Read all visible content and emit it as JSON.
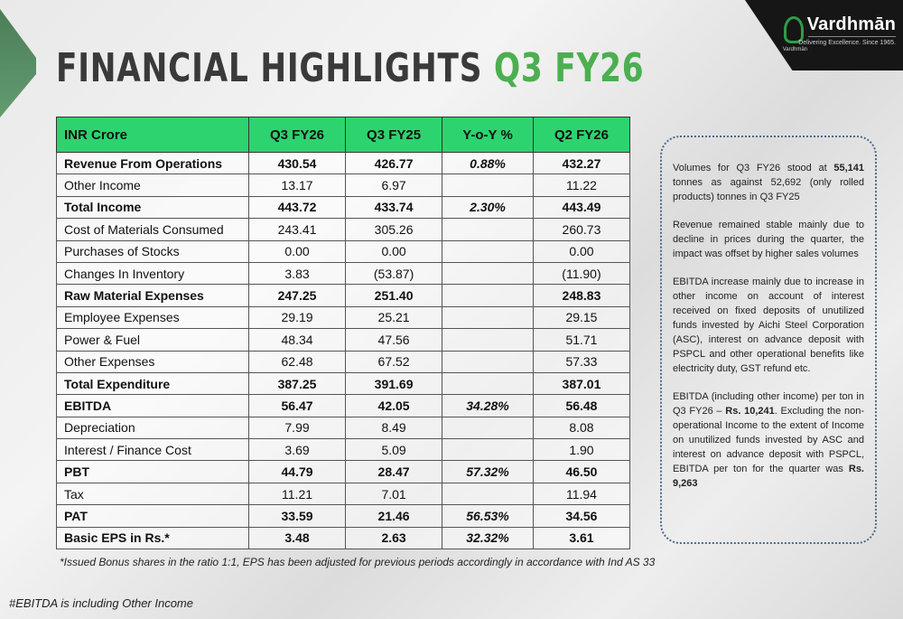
{
  "logo": {
    "name": "Vardhmān",
    "emblem_text": "Vardhmān",
    "tagline": "Delivering Excellence. Since 1965."
  },
  "title": {
    "part1": "FINANCIAL HIGHLIGHTS",
    "part2": "Q3 FY26"
  },
  "table": {
    "headers": [
      "INR Crore",
      "Q3 FY26",
      "Q3 FY25",
      "Y-o-Y %",
      "Q2 FY26"
    ],
    "rows": [
      {
        "label": "Revenue From Operations",
        "q3fy26": "430.54",
        "q3fy25": "426.77",
        "yoy": "0.88%",
        "q2fy26": "432.27",
        "bold": true
      },
      {
        "label": "Other Income",
        "q3fy26": "13.17",
        "q3fy25": "6.97",
        "yoy": "",
        "q2fy26": "11.22",
        "bold": false
      },
      {
        "label": "Total Income",
        "q3fy26": "443.72",
        "q3fy25": "433.74",
        "yoy": "2.30%",
        "q2fy26": "443.49",
        "bold": true
      },
      {
        "label": "Cost of Materials Consumed",
        "q3fy26": "243.41",
        "q3fy25": "305.26",
        "yoy": "",
        "q2fy26": "260.73",
        "bold": false
      },
      {
        "label": "Purchases of Stocks",
        "q3fy26": "0.00",
        "q3fy25": "0.00",
        "yoy": "",
        "q2fy26": "0.00",
        "bold": false
      },
      {
        "label": "Changes In Inventory",
        "q3fy26": "3.83",
        "q3fy25": "(53.87)",
        "yoy": "",
        "q2fy26": "(11.90)",
        "bold": false
      },
      {
        "label": "Raw Material Expenses",
        "q3fy26": "247.25",
        "q3fy25": "251.40",
        "yoy": "",
        "q2fy26": "248.83",
        "bold": true
      },
      {
        "label": "Employee Expenses",
        "q3fy26": "29.19",
        "q3fy25": "25.21",
        "yoy": "",
        "q2fy26": "29.15",
        "bold": false
      },
      {
        "label": "Power & Fuel",
        "q3fy26": "48.34",
        "q3fy25": "47.56",
        "yoy": "",
        "q2fy26": "51.71",
        "bold": false
      },
      {
        "label": "Other Expenses",
        "q3fy26": "62.48",
        "q3fy25": "67.52",
        "yoy": "",
        "q2fy26": "57.33",
        "bold": false
      },
      {
        "label": "Total Expenditure",
        "q3fy26": "387.25",
        "q3fy25": "391.69",
        "yoy": "",
        "q2fy26": "387.01",
        "bold": true
      },
      {
        "label": "EBITDA",
        "q3fy26": "56.47",
        "q3fy25": "42.05",
        "yoy": "34.28%",
        "q2fy26": "56.48",
        "bold": true
      },
      {
        "label": "Depreciation",
        "q3fy26": "7.99",
        "q3fy25": "8.49",
        "yoy": "",
        "q2fy26": "8.08",
        "bold": false
      },
      {
        "label": "Interest / Finance Cost",
        "q3fy26": "3.69",
        "q3fy25": "5.09",
        "yoy": "",
        "q2fy26": "1.90",
        "bold": false
      },
      {
        "label": "PBT",
        "q3fy26": "44.79",
        "q3fy25": "28.47",
        "yoy": "57.32%",
        "q2fy26": "46.50",
        "bold": true
      },
      {
        "label": "Tax",
        "q3fy26": "11.21",
        "q3fy25": "7.01",
        "yoy": "",
        "q2fy26": "11.94",
        "bold": false
      },
      {
        "label": "PAT",
        "q3fy26": "33.59",
        "q3fy25": "21.46",
        "yoy": "56.53%",
        "q2fy26": "34.56",
        "bold": true
      },
      {
        "label": "Basic EPS in Rs.*",
        "q3fy26": "3.48",
        "q3fy25": "2.63",
        "yoy": "32.32%",
        "q2fy26": "3.61",
        "bold": true
      }
    ]
  },
  "footnote_eps": "*Issued Bonus shares in the ratio 1:1, EPS has been adjusted for previous periods accordingly in accordance with Ind AS 33",
  "footnote_ebitda": "#EBITDA is including Other Income",
  "notes": {
    "p1_a": "Volumes for Q3 FY26 stood at ",
    "p1_b": "55,141",
    "p1_c": " tonnes as against 52,692 (only rolled products) tonnes in Q3 FY25",
    "p2": "Revenue remained stable mainly due to decline in prices during the quarter, the impact was offset by higher sales volumes",
    "p3": "EBITDA increase mainly due to increase in other income on account of interest received on fixed deposits of unutilized funds invested by Aichi Steel Corporation (ASC), interest on advance deposit with PSPCL and other operational benefits like electricity duty, GST refund etc.",
    "p4_a": "EBITDA (including other income) per ton in Q3 FY26 – ",
    "p4_b": "Rs. 10,241",
    "p4_c": ". Excluding the non-operational Income to the extent of Income on unutilized funds invested by ASC and interest on advance deposit with PSPCL, EBITDA per ton for the quarter was ",
    "p4_d": "Rs. 9,263"
  }
}
